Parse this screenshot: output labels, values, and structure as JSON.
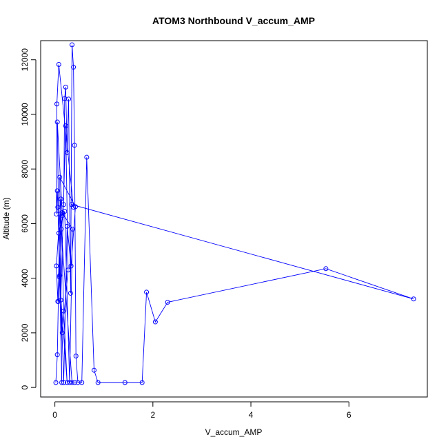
{
  "chart_data": {
    "type": "line",
    "title": "ATOM3 Northbound V_accum_AMP",
    "xlabel": "V_accum_AMP",
    "ylabel": "Altitude (m)",
    "xlim": [
      -0.29,
      7.6
    ],
    "ylim": [
      -350,
      12700
    ],
    "xticks": [
      0,
      2,
      4,
      6
    ],
    "yticks": [
      0,
      2000,
      4000,
      6000,
      8000,
      10000,
      12000
    ],
    "line_color": "#0000ff",
    "marker": "open-circle",
    "grid": false,
    "series": [
      {
        "x": [
          0.02,
          0.05,
          0.07,
          0.1,
          0.13,
          0.16,
          0.18,
          0.2,
          0.22,
          0.25,
          0.28,
          0.32,
          0.35,
          0.38,
          0.4,
          0.43,
          0.47,
          0.55,
          0.65,
          0.8,
          0.88,
          1.43,
          1.78,
          1.87,
          2.05,
          2.3,
          5.53,
          7.32,
          0.34,
          0.38,
          0.08,
          0.04,
          0.03,
          0.05,
          0.15,
          0.27,
          0.22,
          0.12,
          0.06,
          0.18,
          0.25,
          0.33,
          0.42,
          0.1,
          0.14,
          0.08,
          0.2,
          0.3,
          0.36,
          0.15,
          0.05,
          0.09,
          0.25,
          0.18,
          0.12,
          0.03,
          0.06,
          0.11,
          0.35,
          0.4
        ],
        "y": [
          180,
          1200,
          3150,
          4100,
          5800,
          6300,
          6700,
          10580,
          11000,
          8600,
          10560,
          3450,
          12550,
          11730,
          8870,
          1150,
          180,
          180,
          8430,
          630,
          180,
          180,
          180,
          3490,
          2400,
          3120,
          4350,
          3240,
          6700,
          6600,
          11830,
          10380,
          6350,
          7200,
          2000,
          4300,
          9580,
          3200,
          6600,
          180,
          5900,
          4450,
          6620,
          7700,
          180,
          5650,
          6450,
          180,
          5800,
          6400,
          9720,
          4050,
          180,
          2800,
          6900,
          4450,
          3150,
          6350,
          180,
          180
        ]
      }
    ]
  }
}
